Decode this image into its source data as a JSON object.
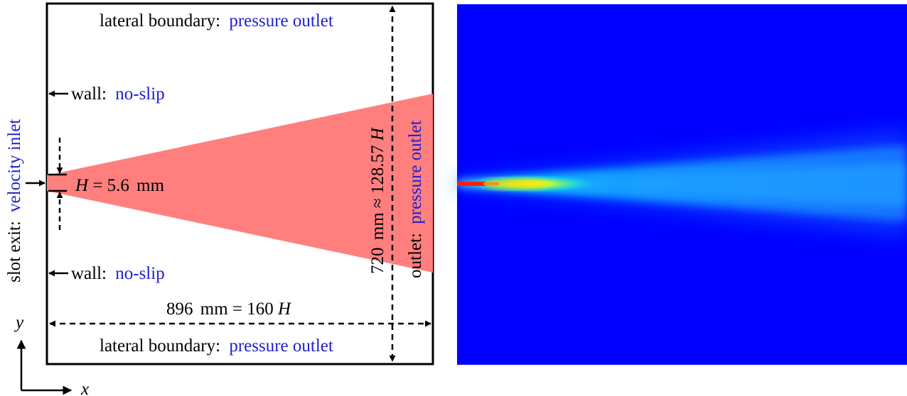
{
  "schematic": {
    "top_boundary": {
      "label": "lateral boundary:",
      "value": "pressure outlet"
    },
    "bottom_boundary": {
      "label": "lateral boundary:",
      "value": "pressure outlet"
    },
    "upper_wall": {
      "label": "wall:",
      "value": "no-slip"
    },
    "lower_wall": {
      "label": "wall:",
      "value": "no-slip"
    },
    "inlet": {
      "label": "slot exit:",
      "value": "velocity inlet"
    },
    "outlet": {
      "label": "outlet:",
      "value": "pressure outlet"
    },
    "slot_height": {
      "symbol": "H",
      "equals": " = 5.6",
      "unit": "mm"
    },
    "domain_length": {
      "value": "896",
      "unit": "mm",
      "equals": " = 160",
      "symbol": "H"
    },
    "domain_height": {
      "value": "720",
      "unit": "mm",
      "approx": " ≈ 128.57",
      "symbol": "H"
    },
    "axes": {
      "y": "y",
      "x": "x"
    },
    "colors": {
      "jet_region": "#ff7f7f",
      "blue_text": "#1f1fd0",
      "line": "#000000"
    }
  },
  "contour": {
    "colors": {
      "background": "#0000ff",
      "plume_mid": "#1e9cff",
      "core": "#ffff00",
      "slot": "#ff0000"
    }
  }
}
